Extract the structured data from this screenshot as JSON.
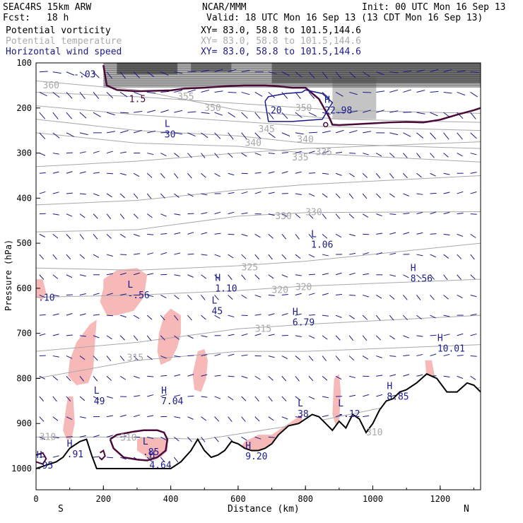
{
  "header": {
    "model": "SEAC4RS 15km ARW",
    "org": "NCAR/MMM",
    "init": "Init: 00 UTC Mon 16 Sep 13",
    "fcst_label": "Fcst:",
    "fcst_value": "18 h",
    "valid": "Valid: 18 UTC Mon 16 Sep 13 (13 CDT Mon 16 Sep 13)"
  },
  "legend": [
    {
      "name": "Potential vorticity",
      "xy": "XY=  83.0, 58.8 to 101.5,144.6",
      "color": "#000000"
    },
    {
      "name": "Potential temperature",
      "xy": "XY=  83.0, 58.8 to 101.5,144.6",
      "color": "#aaaaaa"
    },
    {
      "name": "Horizontal wind speed",
      "xy": "XY=  83.0, 58.8 to 101.5,144.6",
      "color": "#1a1a8c"
    }
  ],
  "colors": {
    "pv": "#4a0a3a",
    "theta": "#a8a8a8",
    "wind": "#1a1a8c",
    "pv_fill": "#f7b8b8",
    "terrain": "#000000"
  },
  "chart_data": {
    "type": "vertical cross-section",
    "xlabel": "Distance (km)",
    "ylabel": "Pressure (hPa)",
    "xlim": [
      0,
      1320
    ],
    "ylim": [
      1050,
      100
    ],
    "x_ticks": [
      0,
      200,
      400,
      600,
      800,
      1000,
      1200
    ],
    "y_ticks": [
      100,
      200,
      300,
      400,
      500,
      600,
      700,
      800,
      900,
      1000
    ],
    "x_end_labels": {
      "left": "S",
      "right": "N"
    },
    "terrain": {
      "x": [
        0,
        20,
        40,
        60,
        80,
        100,
        130,
        150,
        165,
        180,
        200,
        300,
        400,
        430,
        460,
        480,
        500,
        520,
        540,
        560,
        580,
        600,
        620,
        640,
        660,
        680,
        700,
        720,
        750,
        780,
        800,
        820,
        840,
        860,
        880,
        900,
        920,
        940,
        960,
        980,
        1000,
        1020,
        1040,
        1060,
        1080,
        1100,
        1130,
        1160,
        1190,
        1220,
        1250,
        1280,
        1300,
        1320
      ],
      "p": [
        1000,
        995,
        990,
        985,
        975,
        955,
        940,
        935,
        970,
        1000,
        1000,
        1000,
        1000,
        985,
        960,
        935,
        960,
        975,
        970,
        960,
        940,
        945,
        955,
        960,
        960,
        955,
        945,
        925,
        905,
        900,
        890,
        880,
        885,
        900,
        915,
        895,
        910,
        880,
        890,
        920,
        900,
        870,
        850,
        845,
        830,
        825,
        810,
        790,
        800,
        830,
        830,
        810,
        815,
        830
      ]
    },
    "theta_labels": [
      {
        "text": "360",
        "x": 20,
        "p": 150
      },
      {
        "text": "355",
        "x": 420,
        "p": 175
      },
      {
        "text": "350",
        "x": 500,
        "p": 200
      },
      {
        "text": "350",
        "x": 770,
        "p": 200
      },
      {
        "text": "345",
        "x": 660,
        "p": 247
      },
      {
        "text": "340",
        "x": 620,
        "p": 278
      },
      {
        "text": "340",
        "x": 775,
        "p": 270
      },
      {
        "text": "335",
        "x": 760,
        "p": 310
      },
      {
        "text": "335",
        "x": 830,
        "p": 298
      },
      {
        "text": "330",
        "x": 710,
        "p": 440
      },
      {
        "text": "330",
        "x": 800,
        "p": 432
      },
      {
        "text": "325",
        "x": 610,
        "p": 554
      },
      {
        "text": "320",
        "x": 700,
        "p": 604
      },
      {
        "text": "320",
        "x": 770,
        "p": 598
      },
      {
        "text": "315",
        "x": 650,
        "p": 690
      },
      {
        "text": "315",
        "x": 270,
        "p": 755
      },
      {
        "text": "310",
        "x": 250,
        "p": 932
      },
      {
        "text": "310",
        "x": 10,
        "p": 930
      },
      {
        "text": "310",
        "x": 980,
        "p": 920
      }
    ],
    "extrema_labels": [
      {
        "letter": "",
        "value": "-.03",
        "x": 120,
        "p": 115
      },
      {
        "letter": "",
        "value": "1.5",
        "x": 285,
        "p": 170
      },
      {
        "letter": "L",
        "value": "30",
        "x": 390,
        "p": 248
      },
      {
        "letter": "",
        "value": "20",
        "x": 705,
        "p": 195
      },
      {
        "letter": "H",
        "value": "22.98",
        "x": 865,
        "p": 195
      },
      {
        "letter": "L",
        "value": "1.06",
        "x": 825,
        "p": 493
      },
      {
        "letter": "H",
        "value": "8.56",
        "x": 1120,
        "p": 568
      },
      {
        "letter": "H",
        "value": "1.10",
        "x": 540,
        "p": 590
      },
      {
        "letter": "L",
        "value": "-.56",
        "x": 280,
        "p": 605
      },
      {
        "letter": "",
        "value": ".10",
        "x": 15,
        "p": 610
      },
      {
        "letter": "L",
        "value": "45",
        "x": 530,
        "p": 640
      },
      {
        "letter": "H",
        "value": "6.79",
        "x": 770,
        "p": 665
      },
      {
        "letter": "H",
        "value": "10.01",
        "x": 1200,
        "p": 723
      },
      {
        "letter": "L",
        "value": "49",
        "x": 180,
        "p": 840
      },
      {
        "letter": "H",
        "value": "7.04",
        "x": 380,
        "p": 840
      },
      {
        "letter": "H",
        "value": "8.85",
        "x": 1050,
        "p": 830
      },
      {
        "letter": "L",
        "value": "38",
        "x": 785,
        "p": 868
      },
      {
        "letter": "L",
        "value": "-.12",
        "x": 905,
        "p": 868
      },
      {
        "letter": "H",
        "value": ".91",
        "x": 100,
        "p": 958
      },
      {
        "letter": "L",
        "value": ".85",
        "x": 325,
        "p": 953
      },
      {
        "letter": "H",
        "value": "9.20",
        "x": 630,
        "p": 962
      },
      {
        "letter": "H",
        "value": ".95",
        "x": 10,
        "p": 983
      },
      {
        "letter": "H",
        "value": "4.64",
        "x": 345,
        "p": 982
      }
    ],
    "pv_fill_regions": [
      [
        [
          200,
          580
        ],
        [
          240,
          560
        ],
        [
          300,
          555
        ],
        [
          330,
          570
        ],
        [
          320,
          620
        ],
        [
          290,
          650
        ],
        [
          240,
          660
        ],
        [
          210,
          660
        ],
        [
          190,
          630
        ],
        [
          200,
          600
        ]
      ],
      [
        [
          380,
          660
        ],
        [
          400,
          645
        ],
        [
          430,
          660
        ],
        [
          430,
          700
        ],
        [
          420,
          730
        ],
        [
          400,
          760
        ],
        [
          370,
          770
        ],
        [
          360,
          740
        ],
        [
          365,
          700
        ]
      ],
      [
        [
          480,
          740
        ],
        [
          500,
          735
        ],
        [
          510,
          760
        ],
        [
          505,
          800
        ],
        [
          490,
          830
        ],
        [
          470,
          825
        ],
        [
          465,
          790
        ]
      ],
      [
        [
          160,
          680
        ],
        [
          180,
          670
        ],
        [
          175,
          720
        ],
        [
          170,
          780
        ],
        [
          155,
          810
        ],
        [
          120,
          815
        ],
        [
          95,
          795
        ],
        [
          100,
          760
        ],
        [
          120,
          720
        ],
        [
          140,
          700
        ]
      ],
      [
        [
          80,
          915
        ],
        [
          90,
          860
        ],
        [
          95,
          840
        ],
        [
          110,
          840
        ],
        [
          115,
          900
        ],
        [
          105,
          935
        ],
        [
          90,
          935
        ]
      ],
      [
        [
          0,
          580
        ],
        [
          20,
          580
        ],
        [
          30,
          610
        ],
        [
          20,
          625
        ],
        [
          0,
          620
        ]
      ],
      [
        [
          885,
          800
        ],
        [
          900,
          790
        ],
        [
          905,
          830
        ],
        [
          900,
          900
        ],
        [
          890,
          905
        ],
        [
          880,
          880
        ]
      ],
      [
        [
          1155,
          760
        ],
        [
          1175,
          760
        ],
        [
          1185,
          800
        ],
        [
          1170,
          815
        ],
        [
          1160,
          800
        ]
      ],
      [
        [
          600,
          960
        ],
        [
          620,
          940
        ],
        [
          660,
          925
        ],
        [
          700,
          925
        ],
        [
          740,
          905
        ],
        [
          770,
          890
        ],
        [
          790,
          880
        ],
        [
          790,
          900
        ],
        [
          760,
          920
        ],
        [
          720,
          945
        ],
        [
          680,
          960
        ],
        [
          640,
          970
        ]
      ],
      [
        [
          300,
          935
        ],
        [
          320,
          930
        ],
        [
          390,
          935
        ],
        [
          390,
          960
        ],
        [
          370,
          975
        ],
        [
          330,
          975
        ],
        [
          300,
          960
        ]
      ]
    ],
    "pv15_upper": {
      "x": [
        200,
        210,
        240,
        300,
        350,
        400,
        440,
        500,
        560,
        620,
        680,
        720,
        760,
        800,
        840,
        870,
        880,
        900,
        950,
        1000,
        1050,
        1100,
        1150,
        1200,
        1250,
        1300,
        1320
      ],
      "p": [
        105,
        150,
        160,
        163,
        162,
        161,
        157,
        155,
        152,
        150,
        150,
        152,
        155,
        155,
        180,
        220,
        237,
        238,
        236,
        234,
        232,
        231,
        232,
        226,
        215,
        205,
        200
      ]
    },
    "pv_lower_loop": {
      "x": [
        220,
        240,
        290,
        320,
        360,
        380,
        390,
        385,
        360,
        330,
        300,
        260,
        230,
        220
      ],
      "p": [
        935,
        925,
        918,
        915,
        915,
        920,
        935,
        960,
        975,
        982,
        980,
        975,
        955,
        935
      ]
    },
    "pv_small_loops": [
      {
        "x": [
          0,
          20,
          30,
          20,
          0
        ],
        "p": [
          970,
          965,
          978,
          990,
          985
        ]
      },
      {
        "x": [
          190,
          200,
          205,
          195,
          188
        ],
        "p": [
          965,
          960,
          972,
          980,
          975
        ]
      }
    ],
    "wind20_contour": {
      "x": [
        680,
        690,
        740,
        790,
        800,
        850,
        880,
        850,
        760,
        690,
        680
      ],
      "p": [
        185,
        175,
        168,
        165,
        160,
        168,
        188,
        225,
        230,
        230,
        185
      ]
    },
    "tropopause_shading": [
      {
        "x": 200,
        "p": 100,
        "w": 1120,
        "h": 55,
        "opacity": 0.5
      },
      {
        "x": 240,
        "p": 100,
        "w": 180,
        "h": 25,
        "opacity": 0.9
      },
      {
        "x": 460,
        "p": 100,
        "w": 120,
        "h": 20,
        "opacity": 0.7
      },
      {
        "x": 700,
        "p": 100,
        "w": 620,
        "h": 45,
        "opacity": 0.75
      },
      {
        "x": 880,
        "p": 130,
        "w": 130,
        "h": 95,
        "opacity": 0.35
      }
    ],
    "near_surface_shade": {
      "x": 345,
      "p": 960,
      "rx": 30,
      "ry": 26
    },
    "grid": false,
    "legend_position": "top-left"
  }
}
